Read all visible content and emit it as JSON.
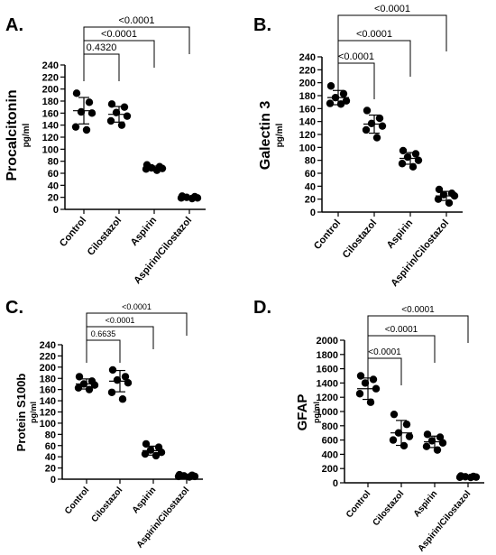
{
  "chart_data": [
    {
      "type": "scatter",
      "letter": "A.",
      "ylabel": "Procalcitonin",
      "yunit": "pg/ml",
      "ylim": [
        0,
        240
      ],
      "yticks": [
        0,
        20,
        40,
        60,
        80,
        100,
        120,
        140,
        160,
        180,
        200,
        220,
        240
      ],
      "categories": [
        "Control",
        "Cilostazol",
        "Aspirin",
        "Aspirin/Cilostazol"
      ],
      "points": [
        [
          193,
          178,
          162,
          160,
          137,
          132
        ],
        [
          175,
          170,
          161,
          155,
          147,
          140
        ],
        [
          74,
          71,
          69,
          68,
          67,
          65
        ],
        [
          22,
          21,
          20,
          19,
          19,
          18
        ]
      ],
      "means": [
        164,
        158,
        69,
        20
      ],
      "sd": [
        22,
        13,
        3,
        1.5
      ],
      "comparisons": [
        {
          "from": "Control",
          "to": "Cilostazol",
          "p": "0.4320"
        },
        {
          "from": "Control",
          "to": "Aspirin",
          "p": "<0.0001"
        },
        {
          "from": "Control",
          "to": "Aspirin/Cilostazol",
          "p": "<0.0001"
        }
      ],
      "grid": false
    },
    {
      "type": "scatter",
      "letter": "B.",
      "ylabel": "Galectin 3",
      "yunit": "pg/ml",
      "ylim": [
        0,
        240
      ],
      "yticks": [
        0,
        20,
        40,
        60,
        80,
        100,
        120,
        140,
        160,
        180,
        200,
        220,
        240
      ],
      "categories": [
        "Control",
        "Cilostazol",
        "Aspirin",
        "Aspirin/Cilostazol"
      ],
      "points": [
        [
          195,
          183,
          177,
          172,
          168,
          167
        ],
        [
          157,
          145,
          137,
          133,
          127,
          115
        ],
        [
          95,
          90,
          85,
          80,
          75,
          70
        ],
        [
          35,
          29,
          27,
          25,
          20,
          14
        ]
      ],
      "means": [
        177,
        136,
        83,
        25
      ],
      "sd": [
        11,
        14,
        9,
        7
      ],
      "comparisons": [
        {
          "from": "Control",
          "to": "Cilostazol",
          "p": "<0.0001"
        },
        {
          "from": "Control",
          "to": "Aspirin",
          "p": "<0.0001"
        },
        {
          "from": "Control",
          "to": "Aspirin/Cilostazol",
          "p": "<0.0001"
        }
      ],
      "grid": false
    },
    {
      "type": "scatter",
      "letter": "C.",
      "ylabel": "Protein S100b",
      "yunit": "pg/ml",
      "ylim": [
        0,
        240
      ],
      "yticks": [
        0,
        20,
        40,
        60,
        80,
        100,
        120,
        140,
        160,
        180,
        200,
        220,
        240
      ],
      "categories": [
        "Control",
        "Cilostazol",
        "Aspirin",
        "Aspirin/Cilostazol"
      ],
      "points": [
        [
          183,
          175,
          170,
          168,
          163,
          160
        ],
        [
          195,
          183,
          177,
          172,
          155,
          143
        ],
        [
          63,
          57,
          52,
          48,
          45,
          42
        ],
        [
          8,
          7,
          6,
          5,
          5,
          4
        ]
      ],
      "means": [
        170,
        175,
        51,
        6
      ],
      "sd": [
        9,
        19,
        8,
        2
      ],
      "comparisons": [
        {
          "from": "Control",
          "to": "Cilostazol",
          "p": "0.6635"
        },
        {
          "from": "Control",
          "to": "Aspirin",
          "p": "<0.0001"
        },
        {
          "from": "Control",
          "to": "Aspirin/Cilostazol",
          "p": "<0.0001"
        }
      ],
      "grid": false
    },
    {
      "type": "scatter",
      "letter": "D.",
      "ylabel": "GFAP",
      "yunit": "pg/ml",
      "ylim": [
        0,
        2000
      ],
      "yticks": [
        0,
        200,
        400,
        600,
        800,
        1000,
        1200,
        1400,
        1600,
        1800,
        2000
      ],
      "categories": [
        "Control",
        "Cilostazol",
        "Aspirin",
        "Aspirin/Cilostazol"
      ],
      "points": [
        [
          1500,
          1450,
          1400,
          1320,
          1250,
          1130
        ],
        [
          960,
          820,
          700,
          650,
          600,
          520
        ],
        [
          680,
          640,
          590,
          560,
          510,
          460
        ],
        [
          95,
          90,
          85,
          80,
          78,
          75
        ]
      ],
      "means": [
        1320,
        700,
        575,
        85
      ],
      "sd": [
        150,
        175,
        80,
        8
      ],
      "comparisons": [
        {
          "from": "Control",
          "to": "Cilostazol",
          "p": "<0.0001"
        },
        {
          "from": "Control",
          "to": "Aspirin",
          "p": "<0.0001"
        },
        {
          "from": "Control",
          "to": "Aspirin/Cilostazol",
          "p": "<0.0001"
        }
      ],
      "grid": false
    }
  ]
}
